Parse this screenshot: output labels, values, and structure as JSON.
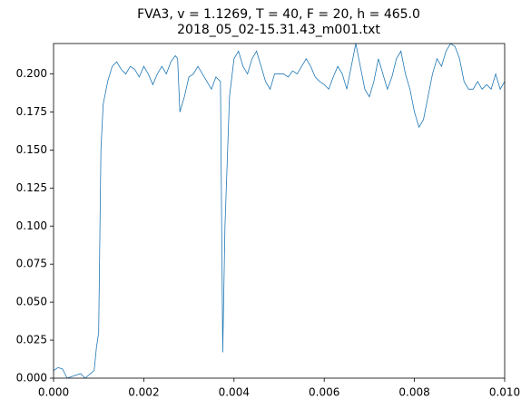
{
  "chart_data": {
    "type": "line",
    "title": "FVA3, v = 1.1269, T = 40, F = 20, h = 465.0",
    "subtitle": "2018_05_02-15.31.43_m001.txt",
    "xlim": [
      0,
      0.01
    ],
    "ylim": [
      0,
      0.22
    ],
    "xticks": [
      {
        "value": 0,
        "label": "0.000"
      },
      {
        "value": 0.002,
        "label": "0.002"
      },
      {
        "value": 0.004,
        "label": "0.004"
      },
      {
        "value": 0.006,
        "label": "0.006"
      },
      {
        "value": 0.008,
        "label": "0.008"
      },
      {
        "value": 0.01,
        "label": "0.010"
      }
    ],
    "yticks": [
      {
        "value": 0,
        "label": "0.000"
      },
      {
        "value": 0.025,
        "label": "0.025"
      },
      {
        "value": 0.05,
        "label": "0.050"
      },
      {
        "value": 0.075,
        "label": "0.075"
      },
      {
        "value": 0.1,
        "label": "0.100"
      },
      {
        "value": 0.125,
        "label": "0.125"
      },
      {
        "value": 0.15,
        "label": "0.150"
      },
      {
        "value": 0.175,
        "label": "0.175"
      },
      {
        "value": 0.2,
        "label": "0.200"
      }
    ],
    "color": "#1f77b4",
    "x": [
      0,
      0.0001,
      0.0002,
      0.0003,
      0.0006,
      0.0007,
      0.0009,
      0.00095,
      0.001,
      0.00105,
      0.0011,
      0.0012,
      0.0013,
      0.0014,
      0.0015,
      0.0016,
      0.0017,
      0.0018,
      0.0019,
      0.002,
      0.0021,
      0.0022,
      0.0023,
      0.0024,
      0.0025,
      0.0026,
      0.0027,
      0.00275,
      0.0028,
      0.0029,
      0.003,
      0.0031,
      0.0032,
      0.0033,
      0.0034,
      0.0035,
      0.0036,
      0.0037,
      0.00375,
      0.0038,
      0.0039,
      0.004,
      0.0041,
      0.0042,
      0.0043,
      0.0044,
      0.0045,
      0.0046,
      0.0047,
      0.0048,
      0.0049,
      0.005,
      0.0051,
      0.0052,
      0.0053,
      0.0054,
      0.0055,
      0.0056,
      0.0057,
      0.0058,
      0.0059,
      0.006,
      0.0061,
      0.0062,
      0.0063,
      0.0064,
      0.0065,
      0.0066,
      0.0067,
      0.0068,
      0.0069,
      0.007,
      0.0071,
      0.0072,
      0.0073,
      0.0074,
      0.0075,
      0.0076,
      0.0077,
      0.0078,
      0.0079,
      0.008,
      0.0081,
      0.0082,
      0.0083,
      0.0084,
      0.0085,
      0.0086,
      0.0087,
      0.0088,
      0.0089,
      0.009,
      0.0091,
      0.0092,
      0.0093,
      0.0094,
      0.0095,
      0.0096,
      0.0097,
      0.0098,
      0.0099,
      0.01
    ],
    "values": [
      0.005,
      0.007,
      0.006,
      0,
      0.003,
      0,
      0.005,
      0.02,
      0.03,
      0.15,
      0.18,
      0.195,
      0.205,
      0.208,
      0.203,
      0.2,
      0.205,
      0.203,
      0.198,
      0.205,
      0.2,
      0.193,
      0.2,
      0.205,
      0.2,
      0.208,
      0.212,
      0.21,
      0.175,
      0.185,
      0.198,
      0.2,
      0.205,
      0.2,
      0.195,
      0.19,
      0.198,
      0.195,
      0.017,
      0.1,
      0.185,
      0.21,
      0.215,
      0.205,
      0.2,
      0.21,
      0.215,
      0.205,
      0.195,
      0.19,
      0.2,
      0.2,
      0.2,
      0.198,
      0.202,
      0.2,
      0.205,
      0.21,
      0.205,
      0.198,
      0.195,
      0.193,
      0.19,
      0.198,
      0.205,
      0.2,
      0.19,
      0.205,
      0.22,
      0.205,
      0.19,
      0.185,
      0.195,
      0.21,
      0.2,
      0.19,
      0.198,
      0.21,
      0.215,
      0.2,
      0.19,
      0.175,
      0.165,
      0.17,
      0.185,
      0.2,
      0.21,
      0.205,
      0.215,
      0.22,
      0.218,
      0.21,
      0.195,
      0.19,
      0.19,
      0.195,
      0.19,
      0.193,
      0.19,
      0.2,
      0.19,
      0.195
    ]
  }
}
